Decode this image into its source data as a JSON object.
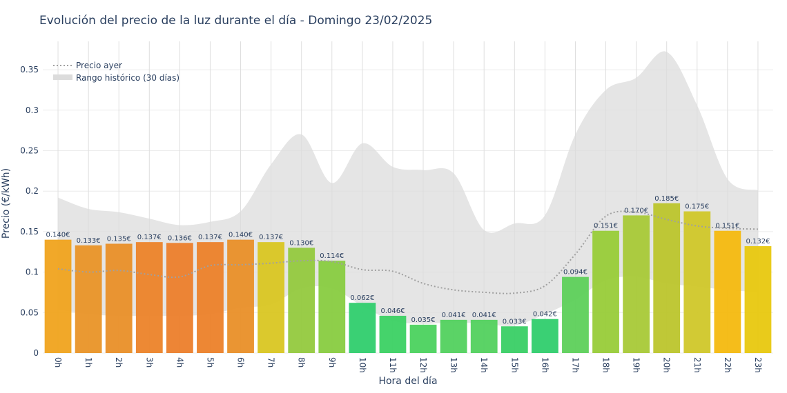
{
  "chart_data": {
    "type": "bar",
    "title": "Evolución del precio de la luz durante el día - Domingo 23/02/2025",
    "xlabel": "Hora del día",
    "ylabel": "Precio (€/kWh)",
    "ylim": [
      0,
      0.385
    ],
    "yticks": [
      "0",
      "0.05",
      "0.1",
      "0.15",
      "0.2",
      "0.25",
      "0.3",
      "0.35"
    ],
    "grid": true,
    "legend_position": "top-left",
    "categories": [
      "0h",
      "1h",
      "2h",
      "3h",
      "4h",
      "5h",
      "6h",
      "7h",
      "8h",
      "9h",
      "10h",
      "11h",
      "12h",
      "13h",
      "14h",
      "15h",
      "16h",
      "17h",
      "18h",
      "19h",
      "20h",
      "21h",
      "22h",
      "23h"
    ],
    "series": [
      {
        "values": [
          0.14,
          0.133,
          0.135,
          0.137,
          0.136,
          0.137,
          0.14,
          0.137,
          0.13,
          0.114,
          0.062,
          0.046,
          0.035,
          0.041,
          0.041,
          0.033,
          0.042,
          0.094,
          0.151,
          0.17,
          0.185,
          0.175,
          0.151,
          0.132
        ],
        "labels": [
          "0.140€",
          "0.133€",
          "0.135€",
          "0.137€",
          "0.136€",
          "0.137€",
          "0.140€",
          "0.137€",
          "0.130€",
          "0.114€",
          "0.062€",
          "0.046€",
          "0.035€",
          "0.041€",
          "0.041€",
          "0.033€",
          "0.042€",
          "0.094€",
          "0.151€",
          "0.170€",
          "0.185€",
          "0.175€",
          "0.151€",
          "0.132€"
        ],
        "colors": [
          "#f0a31d",
          "#e99327",
          "#e98f28",
          "#ec8329",
          "#ec7e2b",
          "#ec8129",
          "#e98f28",
          "#d9c622",
          "#94c93e",
          "#88cc40",
          "#2fce6d",
          "#3bd163",
          "#4bd25e",
          "#52d15e",
          "#52d15e",
          "#39cf65",
          "#2fce6d",
          "#5dd05a",
          "#98cc38",
          "#a8c937",
          "#bcc52c",
          "#d0c729",
          "#f4b90f",
          "#e8c80f"
        ]
      },
      {
        "name": "Precio ayer",
        "type": "line",
        "values": [
          0.104,
          0.1,
          0.102,
          0.097,
          0.094,
          0.108,
          0.109,
          0.111,
          0.114,
          0.113,
          0.103,
          0.101,
          0.086,
          0.078,
          0.075,
          0.074,
          0.083,
          0.122,
          0.169,
          0.174,
          0.165,
          0.157,
          0.154,
          0.153
        ],
        "color": "#a0a0a0"
      },
      {
        "name": "Rango histórico (30 días)",
        "type": "area",
        "upper": [
          0.192,
          0.178,
          0.174,
          0.166,
          0.158,
          0.162,
          0.175,
          0.233,
          0.27,
          0.21,
          0.259,
          0.23,
          0.226,
          0.222,
          0.152,
          0.16,
          0.17,
          0.27,
          0.325,
          0.34,
          0.372,
          0.306,
          0.215,
          0.201
        ],
        "lower": [
          0.054,
          0.048,
          0.046,
          0.046,
          0.046,
          0.048,
          0.056,
          0.06,
          0.08,
          0.08,
          0.058,
          0.04,
          0.036,
          0.038,
          0.036,
          0.034,
          0.048,
          0.066,
          0.09,
          0.094,
          0.086,
          0.082,
          0.078,
          0.075
        ],
        "color": "#dcdcdc"
      }
    ]
  }
}
